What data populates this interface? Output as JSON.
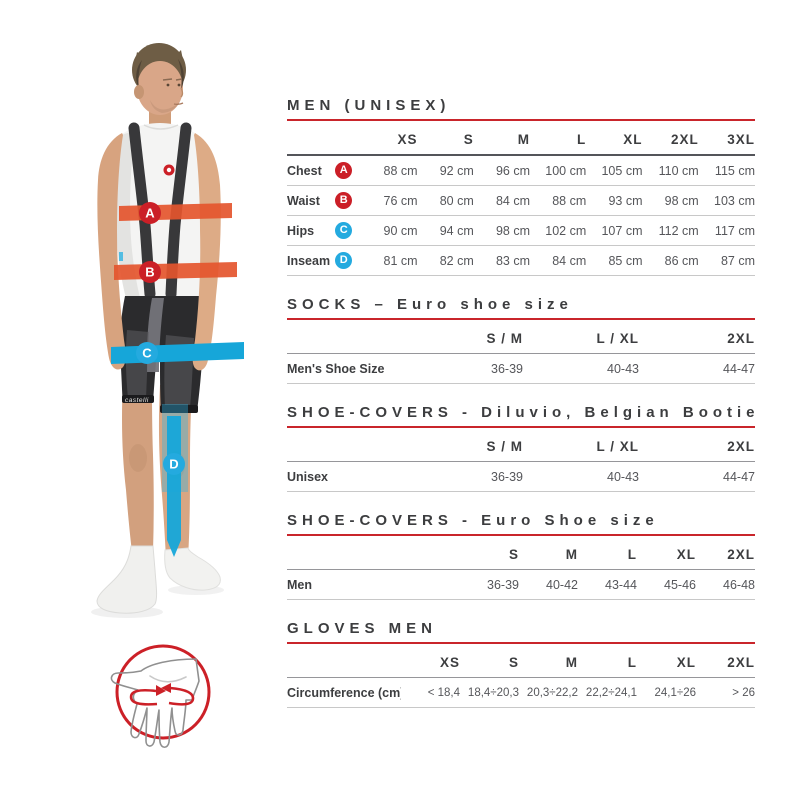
{
  "palette": {
    "title_text": "#3c3d3f",
    "value_text": "#55565a",
    "accent_red": "#c9252b",
    "badge_red": "#cb1f27",
    "badge_blue": "#24aadf",
    "band_orange": "#e4552e",
    "band_blue": "#16a6d9"
  },
  "figure": {
    "brand_text": "castelli",
    "markers": [
      {
        "letter": "A",
        "color": "#cb1f27"
      },
      {
        "letter": "B",
        "color": "#cb1f27"
      },
      {
        "letter": "C",
        "color": "#24aadf"
      },
      {
        "letter": "D",
        "color": "#24aadf"
      }
    ]
  },
  "tables": [
    {
      "title": "MEN (UNISEX)",
      "columns": [
        "XS",
        "S",
        "M",
        "L",
        "XL",
        "2XL",
        "3XL"
      ],
      "rows": [
        {
          "label": "Chest",
          "badge": "A",
          "badge_color": "#cb1f27",
          "values": [
            "88 cm",
            "92 cm",
            "96 cm",
            "100 cm",
            "105 cm",
            "110 cm",
            "115 cm"
          ]
        },
        {
          "label": "Waist",
          "badge": "B",
          "badge_color": "#cb1f27",
          "values": [
            "76 cm",
            "80 cm",
            "84 cm",
            "88 cm",
            "93 cm",
            "98 cm",
            "103 cm"
          ]
        },
        {
          "label": "Hips",
          "badge": "C",
          "badge_color": "#24aadf",
          "values": [
            "90 cm",
            "94 cm",
            "98 cm",
            "102 cm",
            "107 cm",
            "112 cm",
            "117 cm"
          ]
        },
        {
          "label": "Inseam",
          "badge": "D",
          "badge_color": "#24aadf",
          "values": [
            "81 cm",
            "82 cm",
            "83 cm",
            "84 cm",
            "85 cm",
            "86 cm",
            "87 cm"
          ]
        }
      ]
    },
    {
      "title": "SOCKS – Euro shoe size",
      "columns": [
        "S / M",
        "L / XL",
        "2XL"
      ],
      "rows": [
        {
          "label": "Men's Shoe Size",
          "values": [
            "36-39",
            "40-43",
            "44-47"
          ]
        }
      ]
    },
    {
      "title": "SHOE-COVERS - Diluvio, Belgian Bootie",
      "columns": [
        "S / M",
        "L / XL",
        "2XL"
      ],
      "rows": [
        {
          "label": "Unisex",
          "values": [
            "36-39",
            "40-43",
            "44-47"
          ]
        }
      ]
    },
    {
      "title": "SHOE-COVERS - Euro Shoe size",
      "columns": [
        "S",
        "M",
        "L",
        "XL",
        "2XL"
      ],
      "rows": [
        {
          "label": "Men",
          "values": [
            "36-39",
            "40-42",
            "43-44",
            "45-46",
            "46-48"
          ]
        }
      ]
    },
    {
      "title": "GLOVES MEN",
      "columns": [
        "XS",
        "S",
        "M",
        "L",
        "XL",
        "2XL"
      ],
      "rows": [
        {
          "label": "Circumference (cm)",
          "values": [
            "< 18,4",
            "18,4÷20,3",
            "20,3÷22,2",
            "22,2÷24,1",
            "24,1÷26",
            "> 26"
          ]
        }
      ]
    }
  ]
}
